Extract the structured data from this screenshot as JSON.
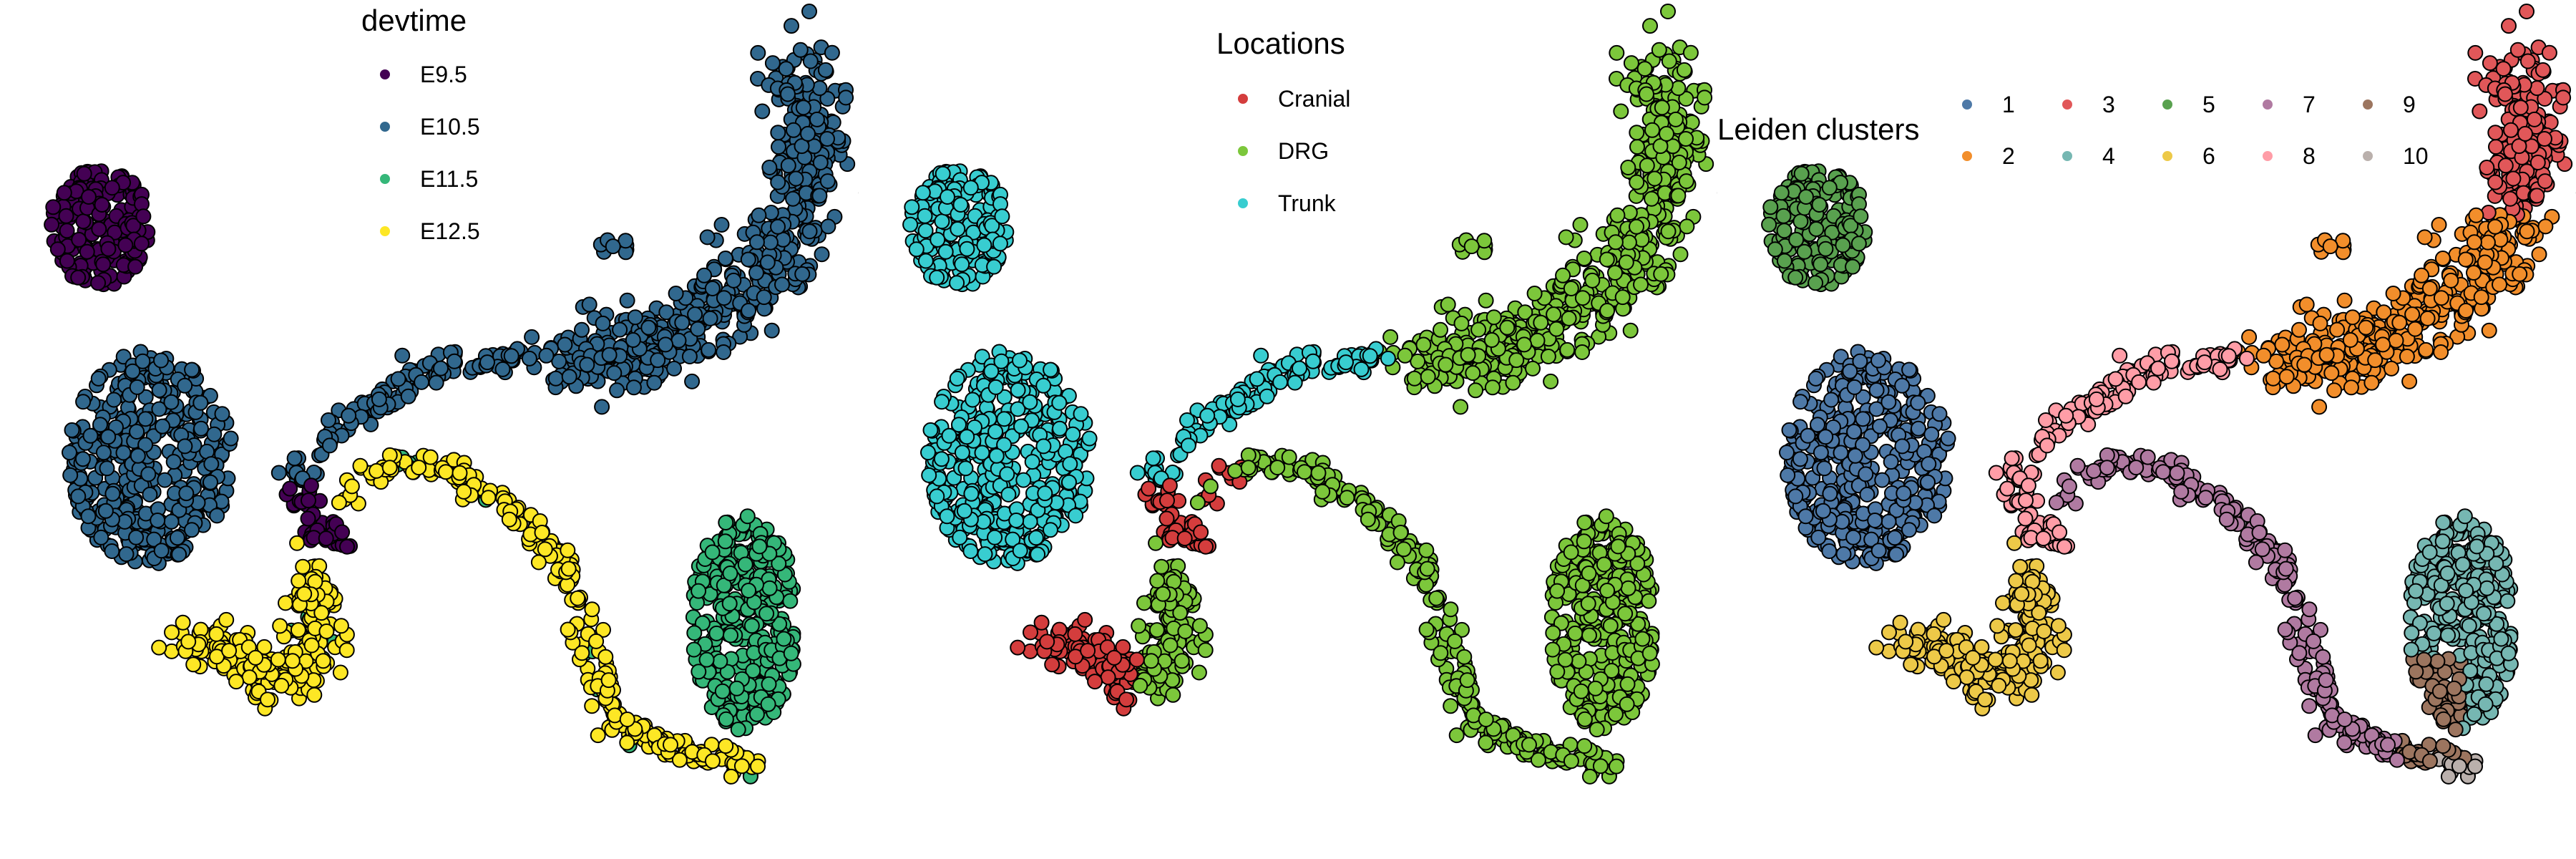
{
  "chart_data": [
    {
      "type": "scatter",
      "title": "",
      "xlabel": "",
      "ylabel": "",
      "axes_visible": false,
      "grid": false,
      "legend": {
        "title": "devtime",
        "placement": "top-center",
        "layout": "vertical",
        "entries": [
          {
            "label": "E9.5",
            "color": "#440154"
          },
          {
            "label": "E10.5",
            "color": "#31688e"
          },
          {
            "label": "E11.5",
            "color": "#35b779"
          },
          {
            "label": "E12.5",
            "color": "#fde725"
          }
        ]
      },
      "series": [
        {
          "name": "E9.5",
          "color": "#440154"
        },
        {
          "name": "E10.5",
          "color": "#31688e"
        },
        {
          "name": "E11.5",
          "color": "#35b779"
        },
        {
          "name": "E12.5",
          "color": "#fde725"
        }
      ]
    },
    {
      "type": "scatter",
      "title": "",
      "xlabel": "",
      "ylabel": "",
      "axes_visible": false,
      "grid": false,
      "legend": {
        "title": "Locations",
        "placement": "top-center",
        "layout": "vertical",
        "entries": [
          {
            "label": "Cranial",
            "color": "#d43d3d"
          },
          {
            "label": "DRG",
            "color": "#7cc73b"
          },
          {
            "label": "Trunk",
            "color": "#38cdd0"
          }
        ]
      },
      "series": [
        {
          "name": "Cranial",
          "color": "#d43d3d"
        },
        {
          "name": "DRG",
          "color": "#7cc73b"
        },
        {
          "name": "Trunk",
          "color": "#38cdd0"
        }
      ]
    },
    {
      "type": "scatter",
      "title": "",
      "xlabel": "",
      "ylabel": "",
      "axes_visible": false,
      "grid": false,
      "legend": {
        "title": "Leiden clusters",
        "placement": "top-right",
        "layout": "grid-5x2",
        "entries": [
          {
            "label": "1",
            "color": "#4e79a7"
          },
          {
            "label": "2",
            "color": "#f28e2b"
          },
          {
            "label": "3",
            "color": "#e15759"
          },
          {
            "label": "4",
            "color": "#76b7b2"
          },
          {
            "label": "5",
            "color": "#59a14f"
          },
          {
            "label": "6",
            "color": "#edc948"
          },
          {
            "label": "7",
            "color": "#b07aa1"
          },
          {
            "label": "8",
            "color": "#ff9da7"
          },
          {
            "label": "9",
            "color": "#9c755f"
          },
          {
            "label": "10",
            "color": "#bab0ac"
          }
        ]
      },
      "series": [
        {
          "name": "1",
          "color": "#4e79a7"
        },
        {
          "name": "2",
          "color": "#f28e2b"
        },
        {
          "name": "3",
          "color": "#e15759"
        },
        {
          "name": "4",
          "color": "#76b7b2"
        },
        {
          "name": "5",
          "color": "#59a14f"
        },
        {
          "name": "6",
          "color": "#edc948"
        },
        {
          "name": "7",
          "color": "#b07aa1"
        },
        {
          "name": "8",
          "color": "#ff9da7"
        },
        {
          "name": "9",
          "color": "#9c755f"
        },
        {
          "name": "10",
          "color": "#bab0ac"
        }
      ]
    }
  ]
}
